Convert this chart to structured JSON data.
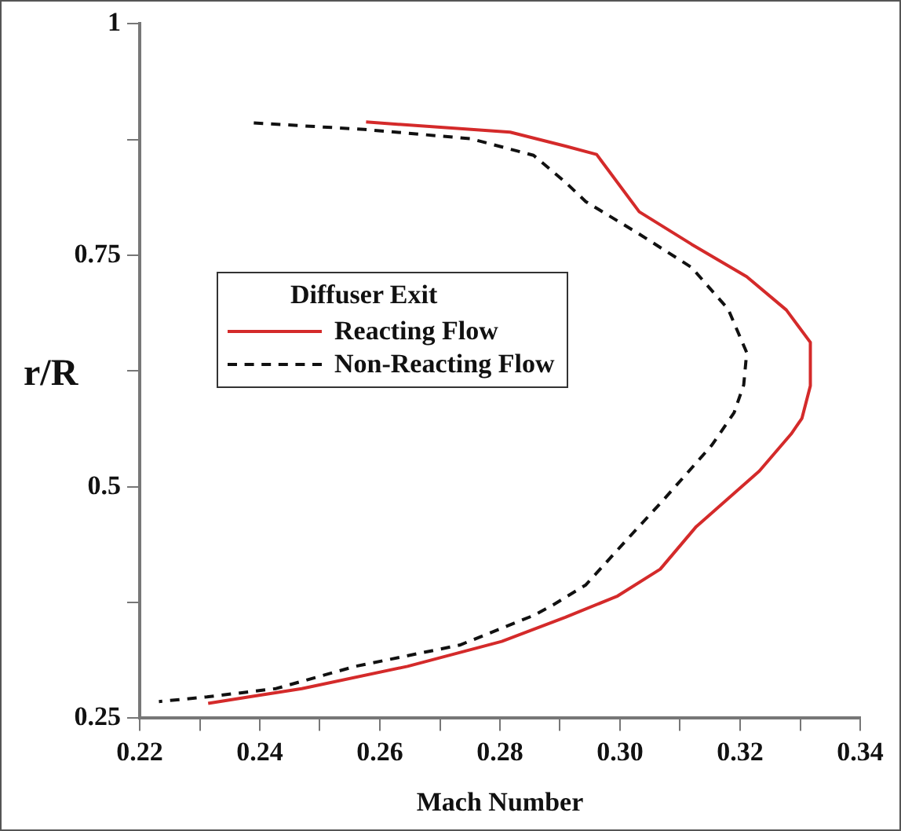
{
  "chart_data": {
    "type": "line",
    "xlabel": "Mach Number",
    "ylabel": "r/R",
    "legend_title": "Diffuser Exit",
    "legend": "left",
    "grid": false,
    "marker": "none",
    "xlim": [
      0.22,
      0.34
    ],
    "ylim": [
      0.25,
      1
    ],
    "xticks": [
      0.22,
      {
        "value": 0.23,
        "label": null
      },
      0.24,
      {
        "value": 0.25,
        "label": null
      },
      0.26,
      {
        "value": 0.27,
        "label": null
      },
      0.28,
      {
        "value": 0.29,
        "label": null
      },
      {
        "value": 0.3,
        "label": "0.30"
      },
      {
        "value": 0.31,
        "label": null
      },
      0.32,
      {
        "value": 0.33,
        "label": null
      },
      0.34
    ],
    "yticks": [
      0.25,
      {
        "value": 0.375,
        "label": null
      },
      0.5,
      {
        "value": 0.625,
        "label": null
      },
      0.75,
      {
        "value": 0.875,
        "label": null
      },
      1
    ],
    "series": [
      {
        "name": "Reacting Flow",
        "color": "#d42a2a",
        "line_style": "solid",
        "x": [
          0.2577,
          0.2817,
          0.2909,
          0.2961,
          0.3032,
          0.3119,
          0.3211,
          0.3277,
          0.3317,
          0.3317,
          0.3303,
          0.3285,
          0.3232,
          0.3127,
          0.3067,
          0.2996,
          0.2909,
          0.2803,
          0.2646,
          0.247,
          0.2382,
          0.2314
        ],
        "values": [
          0.894,
          0.883,
          0.868,
          0.859,
          0.797,
          0.762,
          0.727,
          0.691,
          0.656,
          0.609,
          0.574,
          0.557,
          0.517,
          0.457,
          0.411,
          0.382,
          0.359,
          0.333,
          0.306,
          0.282,
          0.273,
          0.266
        ]
      },
      {
        "name": "Non-Reacting Flow",
        "color": "#111111",
        "line_style": "dashed",
        "x": [
          0.239,
          0.2574,
          0.2751,
          0.2856,
          0.2909,
          0.2943,
          0.3032,
          0.3119,
          0.318,
          0.3211,
          0.3206,
          0.319,
          0.3153,
          0.3074,
          0.3006,
          0.2943,
          0.289,
          0.2856,
          0.2733,
          0.2559,
          0.2427,
          0.2312,
          0.2232
        ],
        "values": [
          0.893,
          0.886,
          0.876,
          0.858,
          0.829,
          0.808,
          0.773,
          0.737,
          0.692,
          0.645,
          0.61,
          0.58,
          0.545,
          0.487,
          0.439,
          0.394,
          0.373,
          0.361,
          0.329,
          0.306,
          0.282,
          0.273,
          0.268
        ]
      }
    ]
  }
}
